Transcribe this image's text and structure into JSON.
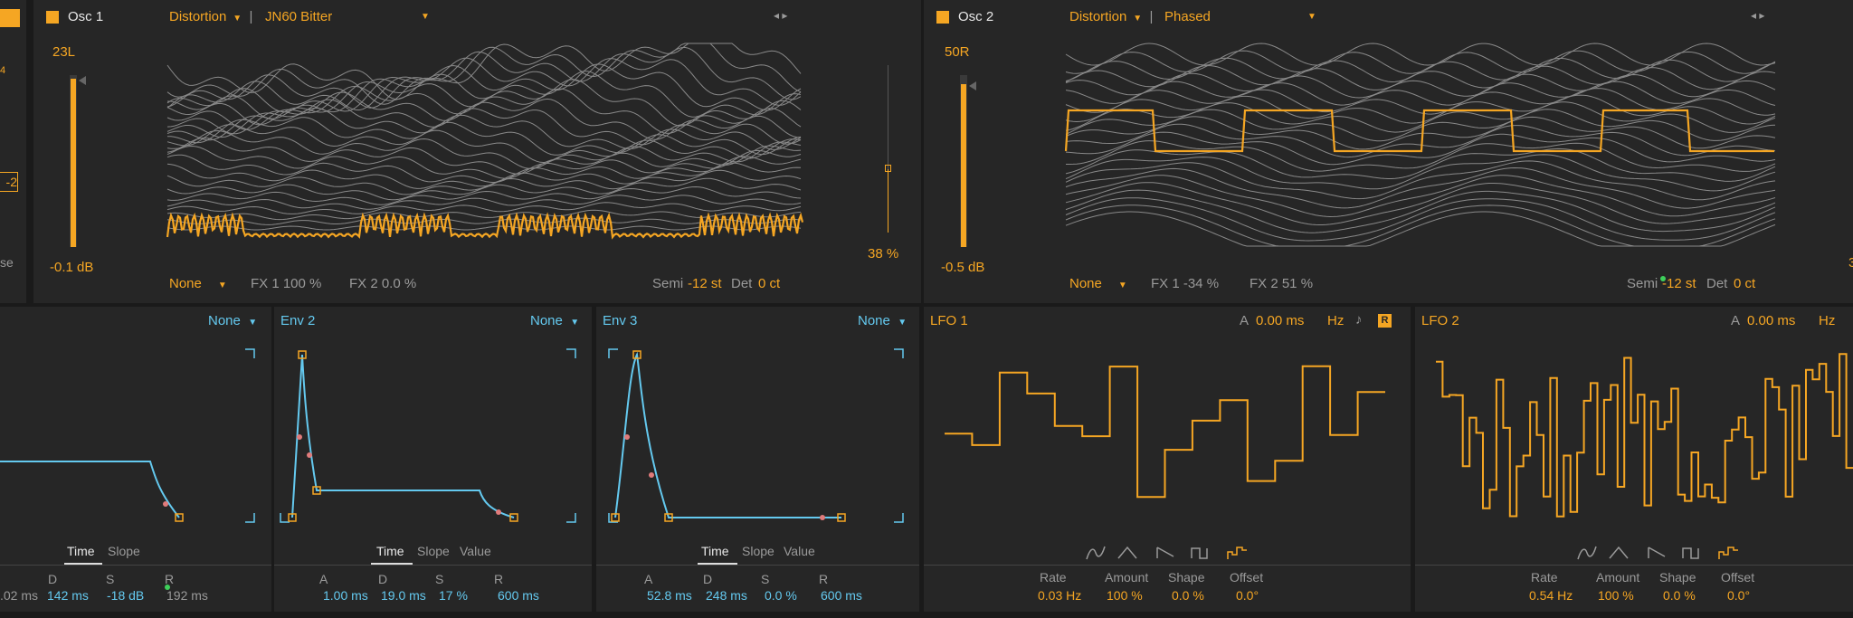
{
  "colors": {
    "accent": "#f5a623",
    "env": "#64c9ef",
    "panel": "#262626",
    "bg": "#1a1a1a"
  },
  "left_edge": {
    "value_top": "4",
    "tag": "-2",
    "label": "se"
  },
  "osc1": {
    "name": "Osc 1",
    "pan": "23L",
    "level": "-0.1 dB",
    "fx_type": "Distortion",
    "wavetable": "JN60 Bitter",
    "right_value": "38 %",
    "filter": "None",
    "fx1": "FX 1 100 %",
    "fx2": "FX 2 0.0 %",
    "semi_label": "Semi",
    "semi_value": "-12 st",
    "det_label": "Det",
    "det_value": "0 ct"
  },
  "osc2": {
    "name": "Osc 2",
    "pan": "50R",
    "level": "-0.5 dB",
    "fx_type": "Distortion",
    "wavetable": "Phased",
    "filter": "None",
    "fx1": "FX 1 -34 %",
    "fx2": "FX 2 51 %",
    "semi_label": "Semi",
    "semi_value": "-12 st",
    "det_label": "Det",
    "det_value": "0 ct",
    "right_edge_value": "3"
  },
  "env1": {
    "mod": "None",
    "tabs": [
      "Time",
      "Slope"
    ],
    "params": [
      {
        "label": "D",
        "value": "142 ms"
      },
      {
        "label": "S",
        "value": "-18 dB"
      },
      {
        "label": "R",
        "value": "192 ms"
      }
    ],
    "partial_value": ".02 ms"
  },
  "env2": {
    "name": "Env 2",
    "mod": "None",
    "tabs": [
      "Time",
      "Slope",
      "Value"
    ],
    "params": [
      {
        "label": "A",
        "value": "1.00 ms"
      },
      {
        "label": "D",
        "value": "19.0 ms"
      },
      {
        "label": "S",
        "value": "17 %"
      },
      {
        "label": "R",
        "value": "600 ms"
      }
    ]
  },
  "env3": {
    "name": "Env 3",
    "mod": "None",
    "tabs": [
      "Time",
      "Slope",
      "Value"
    ],
    "params": [
      {
        "label": "A",
        "value": "52.8 ms"
      },
      {
        "label": "D",
        "value": "248 ms"
      },
      {
        "label": "S",
        "value": "0.0 %"
      },
      {
        "label": "R",
        "value": "600 ms"
      }
    ]
  },
  "lfo1": {
    "name": "LFO 1",
    "a_label": "A",
    "a_value": "0.00 ms",
    "unit": "Hz",
    "note_icon": "♪",
    "retrig": "R",
    "params": [
      {
        "label": "Rate",
        "value": "0.03 Hz"
      },
      {
        "label": "Amount",
        "value": "100 %"
      },
      {
        "label": "Shape",
        "value": "0.0 %"
      },
      {
        "label": "Offset",
        "value": "0.0°"
      }
    ]
  },
  "lfo2": {
    "name": "LFO 2",
    "a_label": "A",
    "a_value": "0.00 ms",
    "unit": "Hz",
    "params": [
      {
        "label": "Rate",
        "value": "0.54 Hz"
      },
      {
        "label": "Amount",
        "value": "100 %"
      },
      {
        "label": "Shape",
        "value": "0.0 %"
      },
      {
        "label": "Offset",
        "value": "0.0°"
      }
    ]
  }
}
